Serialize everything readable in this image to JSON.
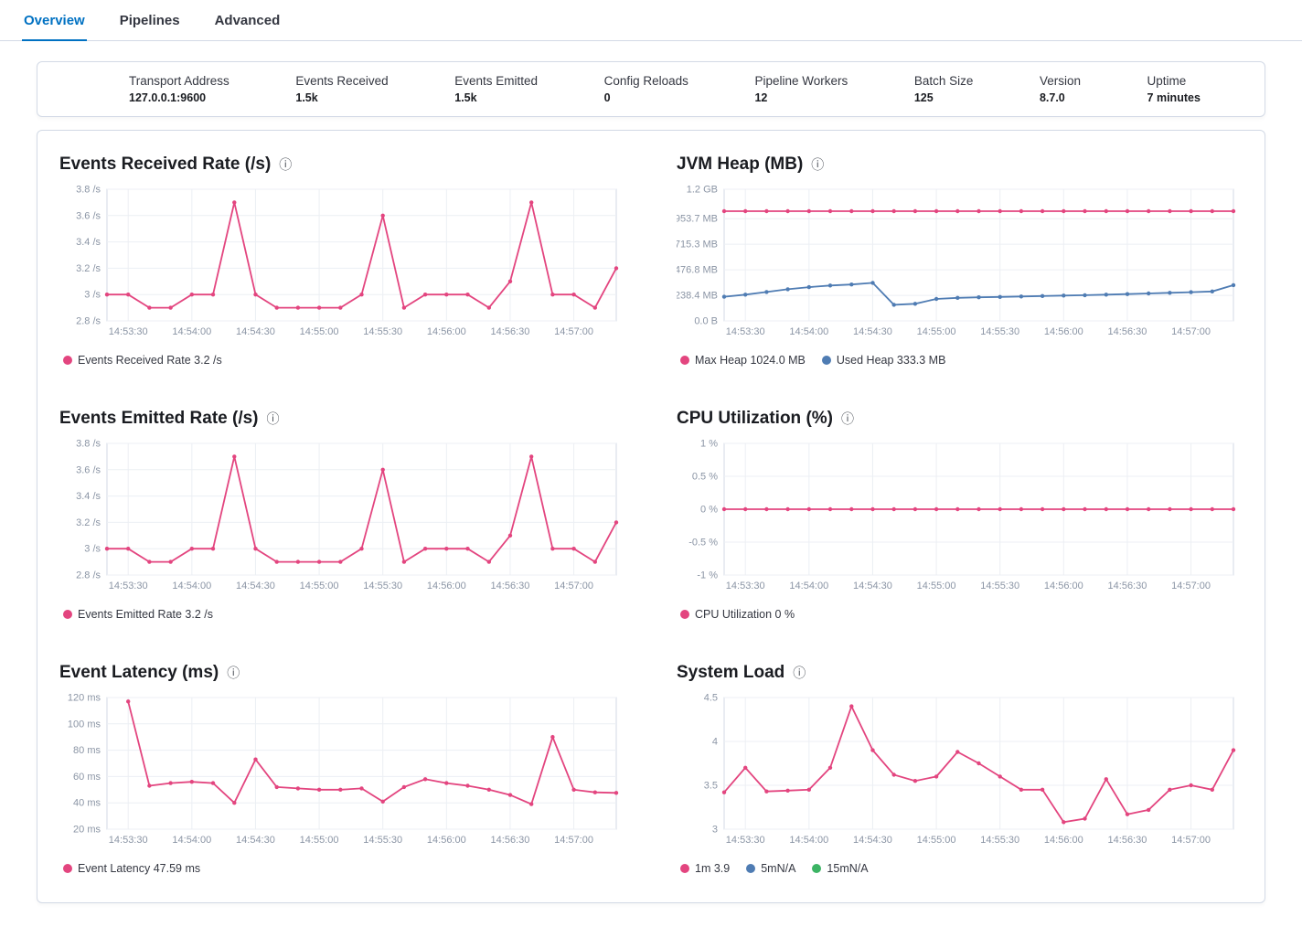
{
  "tabs": [
    {
      "label": "Overview",
      "active": true
    },
    {
      "label": "Pipelines",
      "active": false
    },
    {
      "label": "Advanced",
      "active": false
    }
  ],
  "stats": [
    {
      "label": "Transport Address",
      "value": "127.0.0.1:9600"
    },
    {
      "label": "Events Received",
      "value": "1.5k"
    },
    {
      "label": "Events Emitted",
      "value": "1.5k"
    },
    {
      "label": "Config Reloads",
      "value": "0"
    },
    {
      "label": "Pipeline Workers",
      "value": "12"
    },
    {
      "label": "Batch Size",
      "value": "125"
    },
    {
      "label": "Version",
      "value": "8.7.0"
    },
    {
      "label": "Uptime",
      "value": "7 minutes"
    }
  ],
  "colors": {
    "pink": "#e3457f",
    "blue": "#4f7cb3",
    "green": "#3cb464",
    "grid": "#eceff4",
    "axis_text": "#8b95a5",
    "border": "#d3dae6",
    "active_tab": "#0071c2"
  },
  "x": {
    "count": 25,
    "tick_indices": [
      1,
      4,
      7,
      10,
      13,
      16,
      19,
      22
    ],
    "labels": [
      "14:53:30",
      "14:54:00",
      "14:54:30",
      "14:55:00",
      "14:55:30",
      "14:56:00",
      "14:56:30",
      "14:57:00"
    ]
  },
  "charts": {
    "events_received": {
      "type": "line",
      "title": "Events Received Rate (/s)",
      "ylim": [
        2.8,
        3.8
      ],
      "yticks": [
        {
          "v": 2.8,
          "label": "2.8 /s"
        },
        {
          "v": 3.0,
          "label": "3 /s"
        },
        {
          "v": 3.2,
          "label": "3.2 /s"
        },
        {
          "v": 3.4,
          "label": "3.4 /s"
        },
        {
          "v": 3.6,
          "label": "3.6 /s"
        },
        {
          "v": 3.8,
          "label": "3.8 /s"
        }
      ],
      "series": [
        {
          "name": "Events Received Rate",
          "color": "pink",
          "values": [
            3,
            3,
            2.9,
            2.9,
            3,
            3,
            3.7,
            3,
            2.9,
            2.9,
            2.9,
            2.9,
            3,
            3.6,
            2.9,
            3,
            3,
            3,
            2.9,
            3.1,
            3.7,
            3,
            3,
            2.9,
            3.2
          ]
        }
      ],
      "legend": [
        {
          "color": "pink",
          "label": "Events Received Rate 3.2 /s"
        }
      ]
    },
    "jvm_heap": {
      "type": "line",
      "title": "JVM Heap (MB)",
      "ylim": [
        0,
        1228.8
      ],
      "yticks": [
        {
          "v": 0,
          "label": "0.0 B"
        },
        {
          "v": 238.4,
          "label": "238.4 MB"
        },
        {
          "v": 476.8,
          "label": "476.8 MB"
        },
        {
          "v": 715.3,
          "label": "715.3 MB"
        },
        {
          "v": 953.7,
          "label": "953.7 MB"
        },
        {
          "v": 1228.8,
          "label": "1.2 GB"
        }
      ],
      "series": [
        {
          "name": "Max Heap",
          "color": "pink",
          "values": [
            1024,
            1024,
            1024,
            1024,
            1024,
            1024,
            1024,
            1024,
            1024,
            1024,
            1024,
            1024,
            1024,
            1024,
            1024,
            1024,
            1024,
            1024,
            1024,
            1024,
            1024,
            1024,
            1024,
            1024,
            1024
          ]
        },
        {
          "name": "Used Heap",
          "color": "blue",
          "values": [
            225,
            245,
            270,
            295,
            315,
            330,
            340,
            355,
            150,
            160,
            205,
            215,
            220,
            224,
            228,
            232,
            236,
            240,
            245,
            250,
            256,
            262,
            268,
            275,
            333.3
          ]
        }
      ],
      "legend": [
        {
          "color": "pink",
          "label": "Max Heap 1024.0 MB"
        },
        {
          "color": "blue",
          "label": "Used Heap 333.3 MB"
        }
      ]
    },
    "events_emitted": {
      "type": "line",
      "title": "Events Emitted Rate (/s)",
      "ylim": [
        2.8,
        3.8
      ],
      "yticks": [
        {
          "v": 2.8,
          "label": "2.8 /s"
        },
        {
          "v": 3.0,
          "label": "3 /s"
        },
        {
          "v": 3.2,
          "label": "3.2 /s"
        },
        {
          "v": 3.4,
          "label": "3.4 /s"
        },
        {
          "v": 3.6,
          "label": "3.6 /s"
        },
        {
          "v": 3.8,
          "label": "3.8 /s"
        }
      ],
      "series": [
        {
          "name": "Events Emitted Rate",
          "color": "pink",
          "values": [
            3,
            3,
            2.9,
            2.9,
            3,
            3,
            3.7,
            3,
            2.9,
            2.9,
            2.9,
            2.9,
            3,
            3.6,
            2.9,
            3,
            3,
            3,
            2.9,
            3.1,
            3.7,
            3,
            3,
            2.9,
            3.2
          ]
        }
      ],
      "legend": [
        {
          "color": "pink",
          "label": "Events Emitted Rate 3.2 /s"
        }
      ]
    },
    "cpu": {
      "type": "line",
      "title": "CPU Utilization (%)",
      "ylim": [
        -1,
        1
      ],
      "yticks": [
        {
          "v": -1,
          "label": "-1 %"
        },
        {
          "v": -0.5,
          "label": "-0.5 %"
        },
        {
          "v": 0,
          "label": "0 %"
        },
        {
          "v": 0.5,
          "label": "0.5 %"
        },
        {
          "v": 1,
          "label": "1 %"
        }
      ],
      "series": [
        {
          "name": "CPU Utilization",
          "color": "pink",
          "values": [
            0,
            0,
            0,
            0,
            0,
            0,
            0,
            0,
            0,
            0,
            0,
            0,
            0,
            0,
            0,
            0,
            0,
            0,
            0,
            0,
            0,
            0,
            0,
            0,
            0
          ]
        }
      ],
      "legend": [
        {
          "color": "pink",
          "label": "CPU Utilization 0 %"
        }
      ]
    },
    "latency": {
      "type": "line",
      "title": "Event Latency (ms)",
      "ylim": [
        20,
        120
      ],
      "yticks": [
        {
          "v": 20,
          "label": "20 ms"
        },
        {
          "v": 40,
          "label": "40 ms"
        },
        {
          "v": 60,
          "label": "60 ms"
        },
        {
          "v": 80,
          "label": "80 ms"
        },
        {
          "v": 100,
          "label": "100 ms"
        },
        {
          "v": 120,
          "label": "120 ms"
        }
      ],
      "series": [
        {
          "name": "Event Latency",
          "color": "pink",
          "values": [
            null,
            117,
            53,
            55,
            56,
            55,
            40,
            73,
            52,
            51,
            50,
            50,
            51,
            41,
            52,
            58,
            55,
            53,
            50,
            46,
            39,
            90,
            50,
            48,
            47.59
          ]
        }
      ],
      "legend": [
        {
          "color": "pink",
          "label": "Event Latency 47.59 ms"
        }
      ]
    },
    "system_load": {
      "type": "line",
      "title": "System Load",
      "ylim": [
        3,
        4.5
      ],
      "yticks": [
        {
          "v": 3,
          "label": "3"
        },
        {
          "v": 3.5,
          "label": "3.5"
        },
        {
          "v": 4,
          "label": "4"
        },
        {
          "v": 4.5,
          "label": "4.5"
        }
      ],
      "series": [
        {
          "name": "1m",
          "color": "pink",
          "values": [
            3.42,
            3.7,
            3.43,
            3.44,
            3.45,
            3.7,
            4.4,
            3.9,
            3.62,
            3.55,
            3.6,
            3.88,
            3.75,
            3.6,
            3.45,
            3.45,
            3.08,
            3.12,
            3.57,
            3.17,
            3.22,
            3.45,
            3.5,
            3.45,
            3.9
          ]
        }
      ],
      "legend": [
        {
          "color": "pink",
          "label": "1m 3.9"
        },
        {
          "color": "blue",
          "label": "5mN/A"
        },
        {
          "color": "green",
          "label": "15mN/A"
        }
      ]
    }
  },
  "info_icon_glyph": "ⓘ"
}
